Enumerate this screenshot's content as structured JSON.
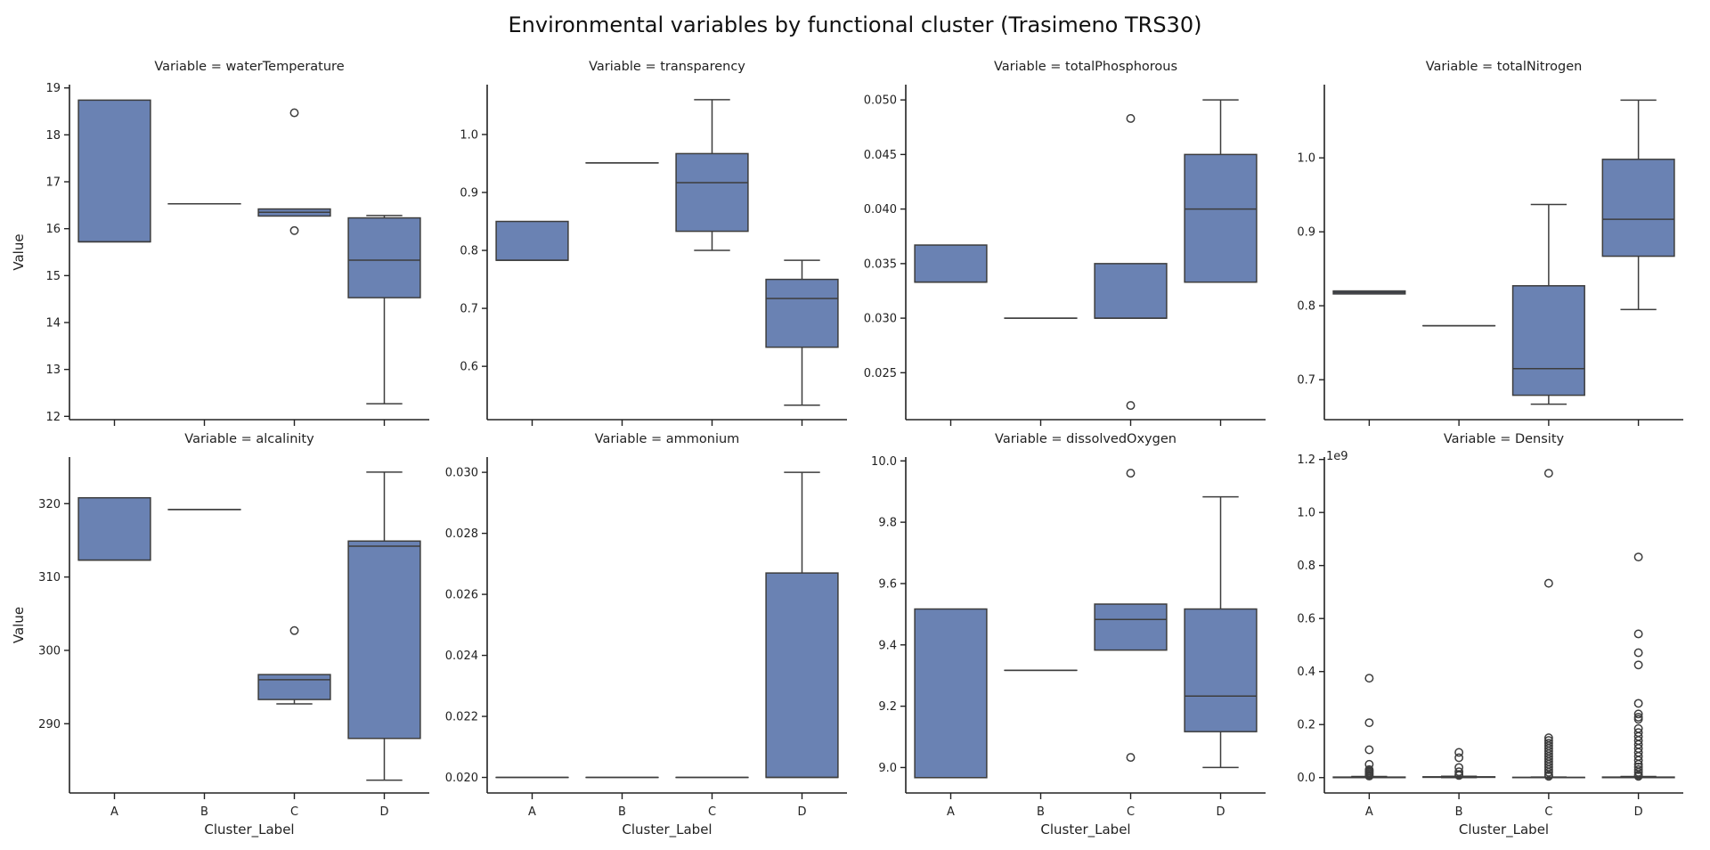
{
  "title": "Environmental variables by functional cluster (Trasimeno TRS30)",
  "style": {
    "box_fill": "#6a82b3",
    "line_color": "#3d3d3d",
    "axis_color": "#222222"
  },
  "chart_data": {
    "type": "box",
    "layout": "2x4 facet grid",
    "xlabel": "Cluster_Label",
    "ylabel": "Value",
    "categories": [
      "A",
      "B",
      "C",
      "D"
    ],
    "panels": [
      {
        "title": "Variable = waterTemperature",
        "ylim": [
          11.93,
          19.07
        ],
        "yticks": [
          12,
          13,
          14,
          15,
          16,
          17,
          18,
          19
        ],
        "ytick_labels": [
          "12",
          "13",
          "14",
          "15",
          "16",
          "17",
          "18",
          "19"
        ],
        "boxes": [
          {
            "cat": "A",
            "whislo": 15.72,
            "q1": 15.72,
            "med": 15.72,
            "q3": 18.74,
            "whishi": 18.74,
            "fliers": []
          },
          {
            "cat": "B",
            "whislo": 16.53,
            "q1": 16.53,
            "med": 16.53,
            "q3": 16.53,
            "whishi": 16.53,
            "fliers": []
          },
          {
            "cat": "C",
            "whislo": 16.27,
            "q1": 16.27,
            "med": 16.35,
            "q3": 16.42,
            "whishi": 16.42,
            "fliers": [
              18.47,
              15.96
            ]
          },
          {
            "cat": "D",
            "whislo": 12.27,
            "q1": 14.53,
            "med": 15.33,
            "q3": 16.23,
            "whishi": 16.28,
            "fliers": []
          }
        ]
      },
      {
        "title": "Variable = transparency",
        "ylim": [
          0.508,
          1.086
        ],
        "yticks": [
          0.6,
          0.7,
          0.8,
          0.9,
          1.0
        ],
        "ytick_labels": [
          "0.6",
          "0.7",
          "0.8",
          "0.9",
          "1.0"
        ],
        "boxes": [
          {
            "cat": "A",
            "whislo": 0.783,
            "q1": 0.783,
            "med": 0.783,
            "q3": 0.85,
            "whishi": 0.85,
            "fliers": []
          },
          {
            "cat": "B",
            "whislo": 0.951,
            "q1": 0.951,
            "med": 0.951,
            "q3": 0.951,
            "whishi": 0.951,
            "fliers": []
          },
          {
            "cat": "C",
            "whislo": 0.8,
            "q1": 0.833,
            "med": 0.917,
            "q3": 0.967,
            "whishi": 1.06,
            "fliers": []
          },
          {
            "cat": "D",
            "whislo": 0.533,
            "q1": 0.633,
            "med": 0.717,
            "q3": 0.75,
            "whishi": 0.783,
            "fliers": []
          }
        ]
      },
      {
        "title": "Variable = totalPhosphorous",
        "ylim": [
          0.0207,
          0.0514
        ],
        "yticks": [
          0.025,
          0.03,
          0.035,
          0.04,
          0.045,
          0.05
        ],
        "ytick_labels": [
          "0.025",
          "0.030",
          "0.035",
          "0.040",
          "0.045",
          "0.050"
        ],
        "boxes": [
          {
            "cat": "A",
            "whislo": 0.0333,
            "q1": 0.0333,
            "med": 0.0333,
            "q3": 0.0367,
            "whishi": 0.0367,
            "fliers": []
          },
          {
            "cat": "B",
            "whislo": 0.03,
            "q1": 0.03,
            "med": 0.03,
            "q3": 0.03,
            "whishi": 0.03,
            "fliers": []
          },
          {
            "cat": "C",
            "whislo": 0.03,
            "q1": 0.03,
            "med": 0.03,
            "q3": 0.035,
            "whishi": 0.035,
            "fliers": [
              0.0483,
              0.022
            ]
          },
          {
            "cat": "D",
            "whislo": 0.0333,
            "q1": 0.0333,
            "med": 0.04,
            "q3": 0.045,
            "whishi": 0.05,
            "fliers": []
          }
        ]
      },
      {
        "title": "Variable = totalNitrogen",
        "ylim": [
          0.646,
          1.099
        ],
        "yticks": [
          0.7,
          0.8,
          0.9,
          1.0
        ],
        "ytick_labels": [
          "0.7",
          "0.8",
          "0.9",
          "1.0"
        ],
        "boxes": [
          {
            "cat": "A",
            "whislo": 0.816,
            "q1": 0.816,
            "med": 0.818,
            "q3": 0.82,
            "whishi": 0.82,
            "fliers": []
          },
          {
            "cat": "B",
            "whislo": 0.773,
            "q1": 0.773,
            "med": 0.773,
            "q3": 0.773,
            "whishi": 0.773,
            "fliers": []
          },
          {
            "cat": "C",
            "whislo": 0.667,
            "q1": 0.679,
            "med": 0.715,
            "q3": 0.827,
            "whishi": 0.937,
            "fliers": []
          },
          {
            "cat": "D",
            "whislo": 0.795,
            "q1": 0.867,
            "med": 0.917,
            "q3": 0.998,
            "whishi": 1.078,
            "fliers": []
          }
        ]
      },
      {
        "title": "Variable = alcalinity",
        "ylim": [
          280.56,
          326.35
        ],
        "yticks": [
          290,
          300,
          310,
          320
        ],
        "ytick_labels": [
          "290",
          "300",
          "310",
          "320"
        ],
        "boxes": [
          {
            "cat": "A",
            "whislo": 312.3,
            "q1": 312.3,
            "med": 312.3,
            "q3": 320.8,
            "whishi": 320.8,
            "fliers": []
          },
          {
            "cat": "B",
            "whislo": 319.2,
            "q1": 319.2,
            "med": 319.2,
            "q3": 319.2,
            "whishi": 319.2,
            "fliers": []
          },
          {
            "cat": "C",
            "whislo": 292.7,
            "q1": 293.3,
            "med": 296.0,
            "q3": 296.7,
            "whishi": 296.7,
            "fliers": [
              302.7
            ]
          },
          {
            "cat": "D",
            "whislo": 282.3,
            "q1": 288.0,
            "med": 314.2,
            "q3": 314.9,
            "whishi": 324.3,
            "fliers": []
          }
        ]
      },
      {
        "title": "Variable = ammonium",
        "ylim": [
          0.01949,
          0.0305
        ],
        "yticks": [
          0.02,
          0.022,
          0.024,
          0.026,
          0.028,
          0.03
        ],
        "ytick_labels": [
          "0.020",
          "0.022",
          "0.024",
          "0.026",
          "0.028",
          "0.030"
        ],
        "boxes": [
          {
            "cat": "A",
            "whislo": 0.02,
            "q1": 0.02,
            "med": 0.02,
            "q3": 0.02,
            "whishi": 0.02,
            "fliers": []
          },
          {
            "cat": "B",
            "whislo": 0.02,
            "q1": 0.02,
            "med": 0.02,
            "q3": 0.02,
            "whishi": 0.02,
            "fliers": []
          },
          {
            "cat": "C",
            "whislo": 0.02,
            "q1": 0.02,
            "med": 0.02,
            "q3": 0.02,
            "whishi": 0.02,
            "fliers": []
          },
          {
            "cat": "D",
            "whislo": 0.02,
            "q1": 0.02,
            "med": 0.02,
            "q3": 0.0267,
            "whishi": 0.03,
            "fliers": []
          }
        ]
      },
      {
        "title": "Variable = dissolvedOxygen",
        "ylim": [
          8.917,
          10.0125
        ],
        "yticks": [
          9.0,
          9.2,
          9.4,
          9.6,
          9.8,
          10.0
        ],
        "ytick_labels": [
          "9.0",
          "9.2",
          "9.4",
          "9.6",
          "9.8",
          "10.0"
        ],
        "boxes": [
          {
            "cat": "A",
            "whislo": 8.967,
            "q1": 8.967,
            "med": 8.967,
            "q3": 9.517,
            "whishi": 9.517,
            "fliers": []
          },
          {
            "cat": "B",
            "whislo": 9.317,
            "q1": 9.317,
            "med": 9.317,
            "q3": 9.317,
            "whishi": 9.317,
            "fliers": []
          },
          {
            "cat": "C",
            "whislo": 9.383,
            "q1": 9.383,
            "med": 9.483,
            "q3": 9.533,
            "whishi": 9.533,
            "fliers": [
              9.96,
              9.033
            ]
          },
          {
            "cat": "D",
            "whislo": 9.0,
            "q1": 9.117,
            "med": 9.233,
            "q3": 9.517,
            "whishi": 9.883,
            "fliers": []
          }
        ]
      },
      {
        "title": "Variable = Density",
        "offset_label": "1e9",
        "ylim": [
          -0.058,
          1.209
        ],
        "yticks": [
          0.0,
          0.2,
          0.4,
          0.6,
          0.8,
          1.0,
          1.2
        ],
        "ytick_labels": [
          "0.0",
          "0.2",
          "0.4",
          "0.6",
          "0.8",
          "1.0",
          "1.2"
        ],
        "boxes": [
          {
            "cat": "A",
            "whislo": 0.0,
            "q1": 0.0,
            "med": 0.001,
            "q3": 0.002,
            "whishi": 0.004,
            "fliers": [
              0.375,
              0.207,
              0.105,
              0.05,
              0.03,
              0.025,
              0.02,
              0.015,
              0.01,
              0.006
            ]
          },
          {
            "cat": "B",
            "whislo": 0.0,
            "q1": 0.001,
            "med": 0.002,
            "q3": 0.003,
            "whishi": 0.005,
            "fliers": [
              0.095,
              0.075,
              0.038,
              0.022,
              0.012,
              0.008
            ]
          },
          {
            "cat": "C",
            "whislo": 0.0,
            "q1": 0.0,
            "med": 0.0005,
            "q3": 0.001,
            "whishi": 0.002,
            "fliers": [
              1.148,
              0.733,
              0.15,
              0.14,
              0.13,
              0.12,
              0.11,
              0.1,
              0.09,
              0.08,
              0.07,
              0.06,
              0.05,
              0.04,
              0.03,
              0.02,
              0.01,
              0.005
            ]
          },
          {
            "cat": "D",
            "whislo": 0.0,
            "q1": 0.0,
            "med": 0.001,
            "q3": 0.002,
            "whishi": 0.004,
            "fliers": [
              0.832,
              0.542,
              0.471,
              0.425,
              0.28,
              0.24,
              0.228,
              0.22,
              0.185,
              0.17,
              0.155,
              0.14,
              0.125,
              0.11,
              0.095,
              0.08,
              0.065,
              0.05,
              0.04,
              0.03,
              0.02,
              0.01,
              0.005
            ]
          }
        ]
      }
    ]
  }
}
